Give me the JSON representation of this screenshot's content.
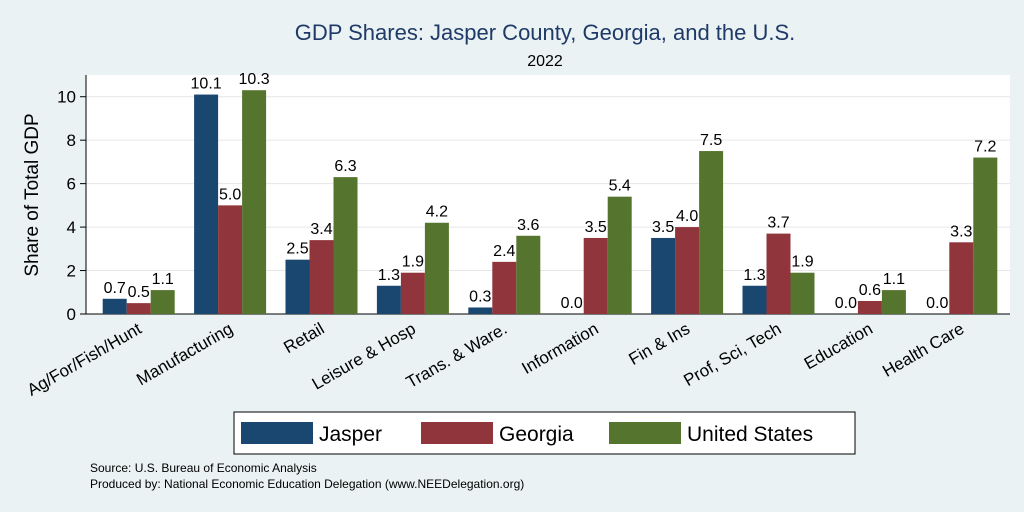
{
  "chart_data": {
    "type": "bar",
    "title": "GDP Shares: Jasper County, Georgia, and the U.S.",
    "subtitle": "2022",
    "ylabel": "Share of Total GDP",
    "xlabel": "",
    "ylim": [
      0,
      11
    ],
    "yticks": [
      0,
      2,
      4,
      6,
      8,
      10
    ],
    "grid": true,
    "legend_position": "bottom",
    "categories": [
      "Ag/For/Fish/Hunt",
      "Manufacturing",
      "Retail",
      "Leisure & Hosp",
      "Trans. & Ware.",
      "Information",
      "Fin & Ins",
      "Prof, Sci, Tech",
      "Education",
      "Health Care"
    ],
    "series": [
      {
        "name": "Jasper",
        "color": "#1a476f",
        "values": [
          0.7,
          10.1,
          2.5,
          1.3,
          0.3,
          0.0,
          3.5,
          1.3,
          0.0,
          0.0
        ],
        "labels": [
          "0.7",
          "10.1",
          "2.5",
          "1.3",
          "0.3",
          "0.0",
          "3.5",
          "1.3",
          "0.0",
          "0.0"
        ]
      },
      {
        "name": "Georgia",
        "color": "#90353b",
        "values": [
          0.5,
          5.0,
          3.4,
          1.9,
          2.4,
          3.5,
          4.0,
          3.7,
          0.6,
          3.3
        ],
        "labels": [
          "0.5",
          "5.0",
          "3.4",
          "1.9",
          "2.4",
          "3.5",
          "4.0",
          "3.7",
          "0.6",
          "3.3"
        ]
      },
      {
        "name": "United States",
        "color": "#55752f",
        "values": [
          1.1,
          10.3,
          6.3,
          4.2,
          3.6,
          5.4,
          7.5,
          1.9,
          1.1,
          7.2
        ],
        "labels": [
          "1.1",
          "10.3",
          "6.3",
          "4.2",
          "3.6",
          "5.4",
          "7.5",
          "1.9",
          "1.1",
          "7.2"
        ]
      }
    ]
  },
  "notes": {
    "source": "Source: U.S. Bureau of Economic Analysis",
    "produced_by": "Produced by: National Economic Education Delegation (www.NEEDelegation.org)"
  }
}
